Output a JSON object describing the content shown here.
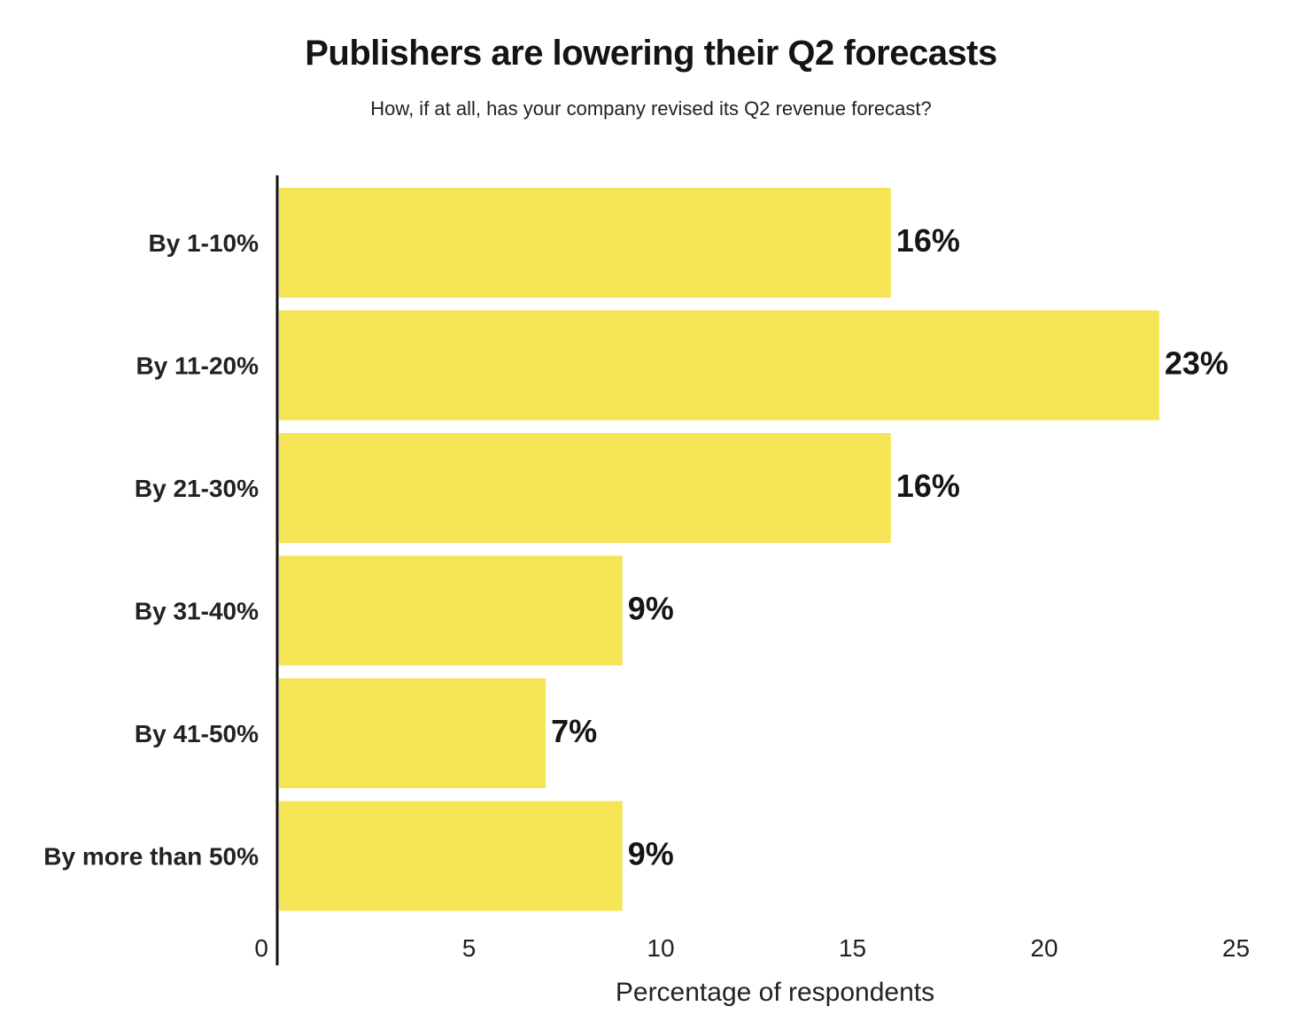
{
  "chart_data": {
    "type": "bar",
    "orientation": "horizontal",
    "title": "Publishers are lowering their Q2 forecasts",
    "subtitle": "How, if at all, has your company revised its Q2 revenue forecast?",
    "xlabel": "Percentage of respondents",
    "ylabel": "",
    "categories": [
      "By 1-10%",
      "By 11-20%",
      "By 21-30%",
      "By 31-40%",
      "By 41-50%",
      "By more than 50%"
    ],
    "values": [
      16,
      23,
      16,
      9,
      7,
      9
    ],
    "value_labels": [
      "16%",
      "23%",
      "16%",
      "9%",
      "7%",
      "9%"
    ],
    "xlim": [
      0,
      25
    ],
    "xticks": [
      "0",
      "5",
      "10",
      "15",
      "20",
      "25"
    ],
    "grid": false,
    "bar_color": "#f5e556",
    "axis_color": "#111111"
  }
}
